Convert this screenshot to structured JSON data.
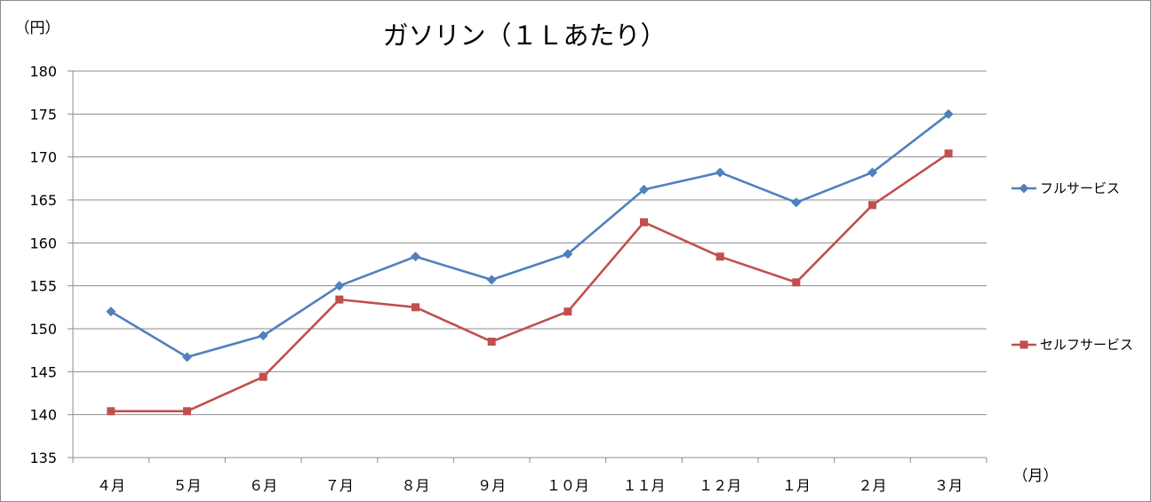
{
  "chart_data": {
    "type": "line",
    "title": "ガソリン（１Ｌあたり）",
    "ylabel": "（円）",
    "xlabel": "（月）",
    "ylim": [
      135,
      180
    ],
    "yticks": [
      135,
      140,
      145,
      150,
      155,
      160,
      165,
      170,
      175,
      180
    ],
    "grid": true,
    "legend_position": "right",
    "categories": [
      "４月",
      "５月",
      "６月",
      "７月",
      "８月",
      "９月",
      "１０月",
      "１１月",
      "１２月",
      "１月",
      "２月",
      "３月"
    ],
    "series": [
      {
        "name": "フルサービス",
        "color": "#4f81bd",
        "marker": "diamond",
        "values": [
          152.0,
          146.7,
          149.2,
          155.0,
          158.4,
          155.7,
          158.7,
          166.2,
          168.2,
          164.7,
          168.2,
          175.0
        ]
      },
      {
        "name": "セルフサービス",
        "color": "#c0504d",
        "marker": "square",
        "values": [
          140.4,
          140.4,
          144.4,
          153.4,
          152.5,
          148.5,
          152.0,
          162.4,
          158.4,
          155.4,
          164.4,
          170.4
        ]
      }
    ]
  }
}
